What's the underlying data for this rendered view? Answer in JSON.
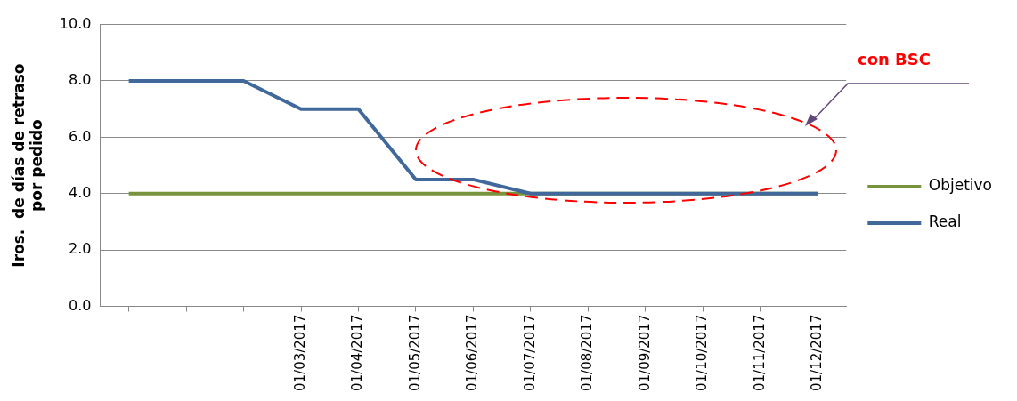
{
  "chart_data": {
    "type": "line",
    "ylabel": "Iros.  de días de retraso\npor pedido",
    "categories": [
      null,
      null,
      null,
      "01/03/2017",
      "01/04/2017",
      "01/05/2017",
      "01/06/2017",
      "01/07/2017",
      "01/08/2017",
      "01/09/2017",
      "01/10/2017",
      "01/11/2017",
      "01/12/2017"
    ],
    "series": [
      {
        "name": "Objetivo",
        "color": "#77933c",
        "values": [
          4,
          4,
          4,
          4,
          4,
          4,
          4,
          4,
          4,
          4,
          4,
          4,
          4
        ]
      },
      {
        "name": "Real",
        "color": "#41689a",
        "values": [
          8,
          8,
          8,
          7,
          7,
          4.5,
          4.5,
          4,
          4,
          4,
          4,
          4,
          4
        ]
      }
    ],
    "ylim": [
      0,
      10
    ],
    "yticks": [
      {
        "value": 0,
        "label": "0.0"
      },
      {
        "value": 2,
        "label": "2.0"
      },
      {
        "value": 4,
        "label": "4.0"
      },
      {
        "value": 6,
        "label": "6.0"
      },
      {
        "value": 8,
        "label": "8.0"
      },
      {
        "value": 10,
        "label": "10.0"
      }
    ],
    "grid": "y",
    "legend": "right",
    "marker": "none",
    "line_style": "solid",
    "annotations": [
      "con BSC"
    ]
  }
}
